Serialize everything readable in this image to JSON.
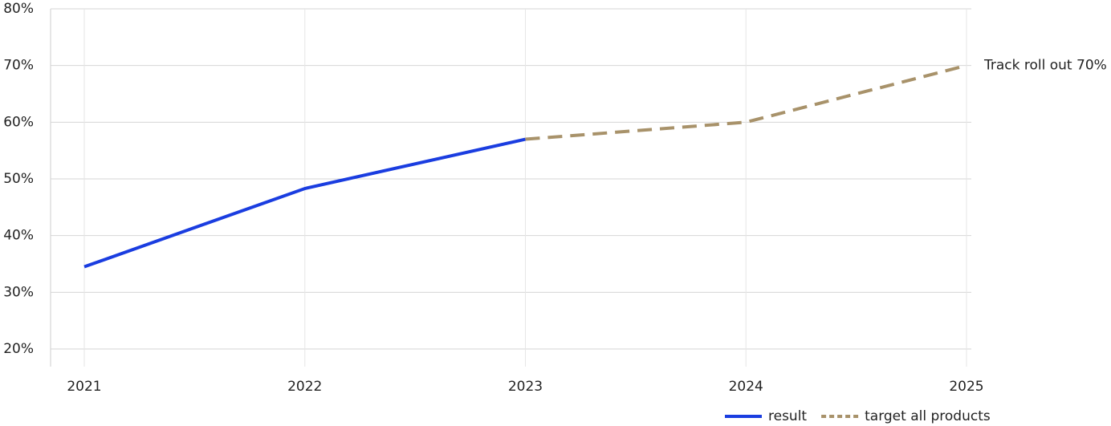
{
  "chart_data": {
    "type": "line",
    "categories": [
      "2021",
      "2022",
      "2023",
      "2024",
      "2025"
    ],
    "series": [
      {
        "name": "result",
        "color": "#1a3de0",
        "style": "solid",
        "values": [
          34.5,
          48.3,
          57,
          null,
          null
        ]
      },
      {
        "name": "target all products",
        "color": "#a8926a",
        "style": "dashed",
        "values": [
          null,
          null,
          57,
          60,
          70
        ]
      }
    ],
    "ylim": [
      20,
      80
    ],
    "yticks": [
      {
        "value": 20,
        "label": "20%"
      },
      {
        "value": 30,
        "label": "30%"
      },
      {
        "value": 40,
        "label": "40%"
      },
      {
        "value": 50,
        "label": "50%"
      },
      {
        "value": 60,
        "label": "60%"
      },
      {
        "value": 70,
        "label": "70%"
      },
      {
        "value": 80,
        "label": "80%"
      }
    ],
    "grid": true,
    "annotation": "Track roll out 70%",
    "legend": "bottom-right"
  }
}
